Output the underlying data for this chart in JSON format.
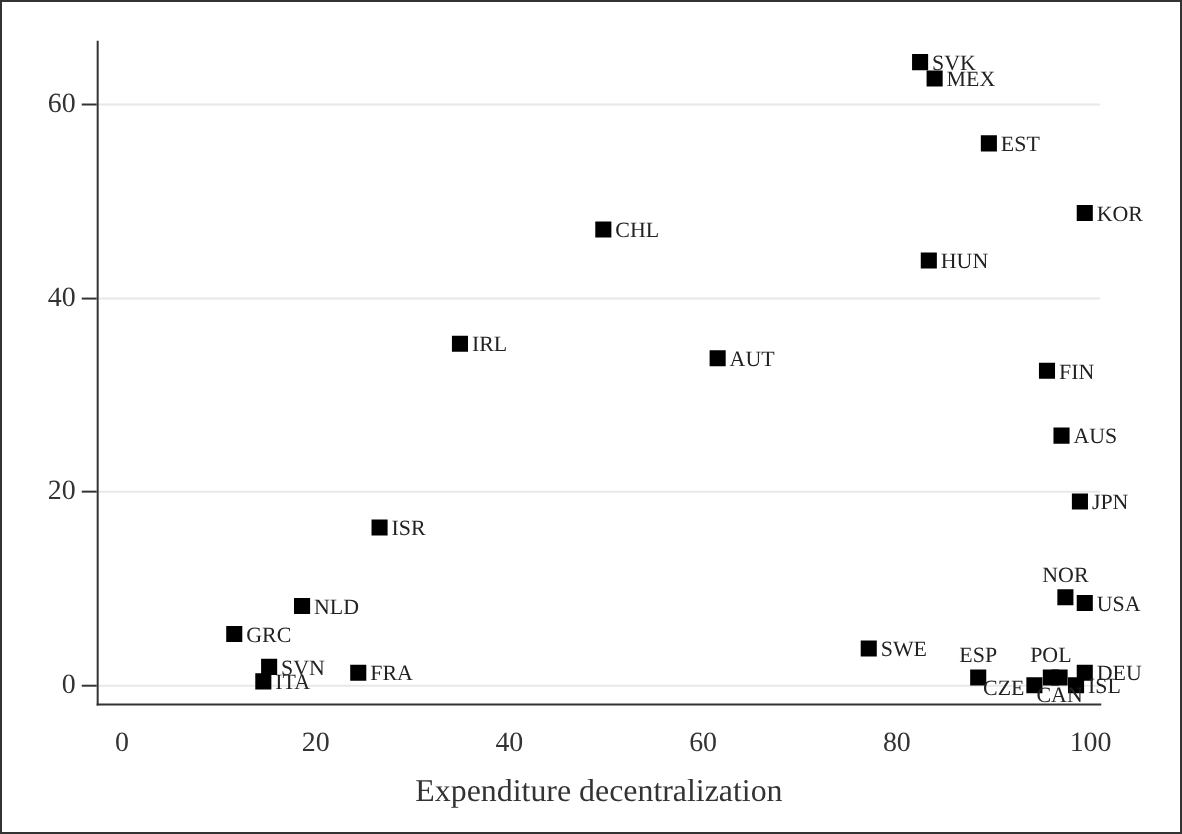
{
  "chart_data": {
    "type": "scatter",
    "xlabel": "Expenditure decentralization",
    "x": [
      82.4,
      83.9,
      89.5,
      99.4,
      49.7,
      83.3,
      34.9,
      61.5,
      95.5,
      97.0,
      98.9,
      26.6,
      18.6,
      97.4,
      99.4,
      11.6,
      77.1,
      15.2,
      24.4,
      14.6,
      88.4,
      94.2,
      95.9,
      96.8,
      98.5,
      99.4
    ],
    "values": [
      64.4,
      62.7,
      56.0,
      48.8,
      47.1,
      43.9,
      35.3,
      33.8,
      32.5,
      25.8,
      19.0,
      16.3,
      8.2,
      9.1,
      8.5,
      5.3,
      3.8,
      1.9,
      1.3,
      0.4,
      0.8,
      0.0,
      0.8,
      0.8,
      0.0,
      1.3
    ],
    "value_labels": [
      "SVK",
      "MEX",
      "EST",
      "KOR",
      "CHL",
      "HUN",
      "IRL",
      "AUT",
      "FIN",
      "AUS",
      "JPN",
      "ISR",
      "NLD",
      "NOR",
      "USA",
      "GRC",
      "SWE",
      "SVN",
      "FRA",
      "ITA",
      "ESP",
      "CZE",
      "POL",
      "CAN",
      "ISL",
      "DEU"
    ],
    "color": "#000000",
    "marker": "square",
    "xlim": [
      -2.5,
      101
    ],
    "xticks": [
      0,
      20,
      40,
      60,
      80,
      100
    ],
    "ylim": [
      -2,
      66.5
    ],
    "yticks": [
      0,
      20,
      40,
      60
    ],
    "grid": "y",
    "legend": false
  }
}
